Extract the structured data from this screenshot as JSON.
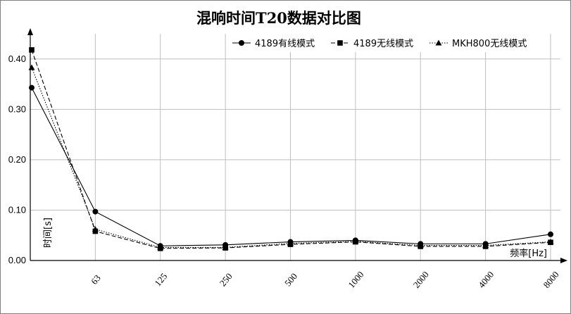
{
  "chart_data": {
    "type": "line",
    "title": "混响时间T20数据对比图",
    "xlabel": "频率[Hz]",
    "ylabel": "时间[s]",
    "categories": [
      "",
      "63",
      "125",
      "250",
      "500",
      "1000",
      "2000",
      "4000",
      "8000"
    ],
    "ylim": [
      0,
      0.45
    ],
    "yticks": [
      "0.00",
      "0.10",
      "0.20",
      "0.30",
      "0.40"
    ],
    "grid": true,
    "legend_position": "top-right",
    "series": [
      {
        "name": "4189有线模式",
        "marker": "circle",
        "dash": "solid",
        "values": [
          0.343,
          0.097,
          0.029,
          0.031,
          0.037,
          0.04,
          0.033,
          0.033,
          0.052
        ]
      },
      {
        "name": "4189无线模式",
        "marker": "square",
        "dash": "dashed",
        "values": [
          0.418,
          0.058,
          0.024,
          0.025,
          0.032,
          0.037,
          0.028,
          0.028,
          0.036
        ]
      },
      {
        "name": "MKH800无线模式",
        "marker": "triangle",
        "dash": "dotted",
        "values": [
          0.383,
          0.062,
          0.026,
          0.026,
          0.034,
          0.038,
          0.03,
          0.03,
          0.037
        ]
      }
    ]
  }
}
